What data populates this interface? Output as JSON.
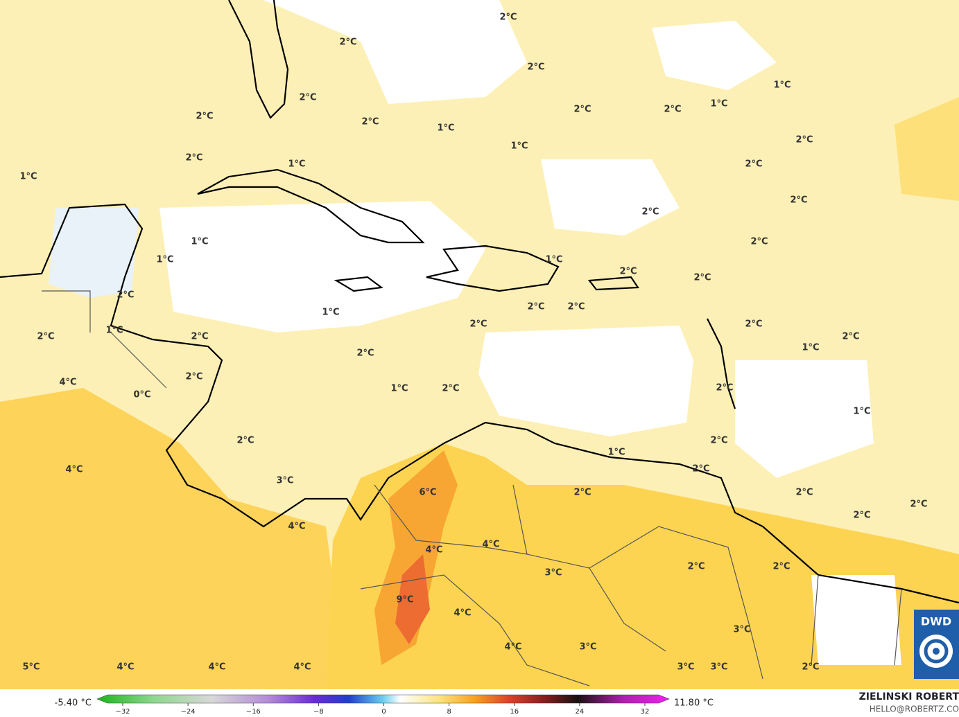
{
  "map_labels": [
    "2°C",
    "2°C",
    "2°C",
    "2°C",
    "2°C",
    "2°C",
    "2°C",
    "2°C",
    "2°C",
    "1°C",
    "1°C",
    "1°C",
    "1°C",
    "2°C",
    "2°C",
    "2°C",
    "2°C",
    "2°C",
    "2°C",
    "2°C",
    "1°C",
    "2°C",
    "2°C",
    "2°C",
    "2°C",
    "1°C",
    "2°C",
    "2°C",
    "1°C",
    "2°C",
    "1°C",
    "2°C",
    "2°C",
    "2°C",
    "2°C",
    "2°C",
    "1°C",
    "1°C",
    "1°C",
    "1°C",
    "2°C",
    "1°C",
    "1°C",
    "2°C",
    "1°C",
    "2°C",
    "2°C",
    "2°C",
    "4°C",
    "2°C",
    "0°C",
    "2°C",
    "4°C",
    "3°C",
    "4°C",
    "6°C",
    "4°C",
    "4°C",
    "3°C",
    "4°C",
    "9°C",
    "4°C",
    "3°C",
    "2°C",
    "2°C",
    "3°C",
    "3°C",
    "3°C",
    "2°C",
    "5°C",
    "4°C",
    "4°C",
    "4°C"
  ],
  "colorbar": {
    "min_label": "-5.40 °C",
    "max_label": "11.80 °C",
    "ticks": [
      {
        "value": -32,
        "label": "−32"
      },
      {
        "value": -24,
        "label": "−24"
      },
      {
        "value": -16,
        "label": "−16"
      },
      {
        "value": -8,
        "label": "−8"
      },
      0,
      8,
      16,
      24,
      32
    ]
  },
  "credits": {
    "author": "ZIELINSKI ROBERT",
    "contact": "HELLO@ROBERTZ.CO"
  },
  "logo": "DWD"
}
